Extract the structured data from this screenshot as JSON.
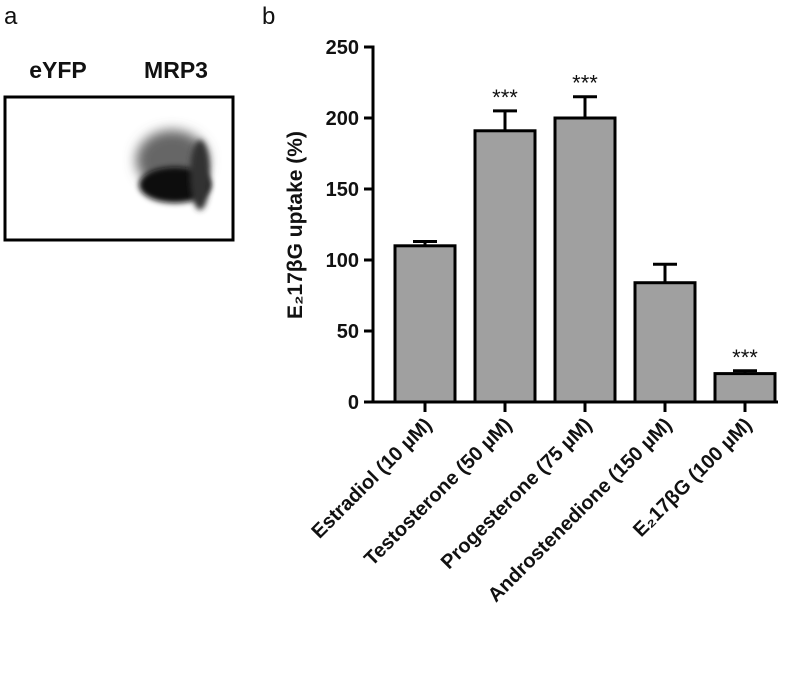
{
  "panel_a": {
    "label": "a",
    "lanes": [
      "eYFP",
      "MRP3"
    ]
  },
  "chart_data": {
    "type": "bar",
    "panel_label": "b",
    "y_label": "E₂17βG uptake (%)",
    "categories": [
      "Estradiol (10 µM)",
      "Testosterone (50 µM)",
      "Progesterone (75 µM)",
      "Androstenedione (150 µM)",
      "E₂17βG (100 µM)"
    ],
    "values": [
      110,
      191,
      200,
      84,
      20
    ],
    "errors": [
      3,
      14,
      15,
      13,
      2
    ],
    "annotations": [
      null,
      "***",
      "***",
      null,
      "***"
    ],
    "color": "#a0a0a0",
    "ylim": [
      0,
      250
    ],
    "yticks": [
      0,
      50,
      100,
      150,
      200,
      250
    ],
    "grid": false
  }
}
